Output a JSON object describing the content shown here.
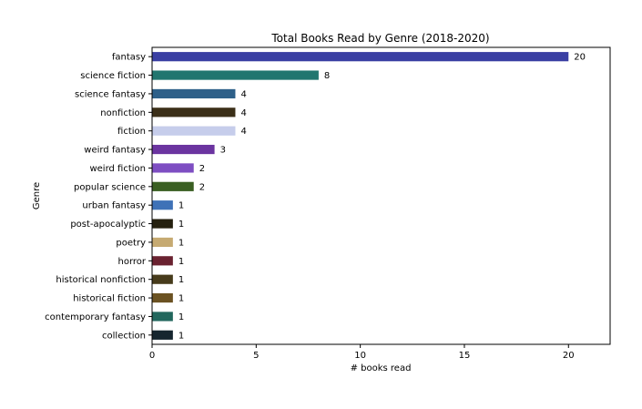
{
  "chart_data": {
    "type": "bar",
    "orientation": "horizontal",
    "title": "Total Books Read by Genre (2018-2020)",
    "xlabel": "# books read",
    "ylabel": "Genre",
    "xlim": [
      0,
      22
    ],
    "xticks": [
      0,
      5,
      10,
      15,
      20
    ],
    "grid": false,
    "categories": [
      "fantasy",
      "science fiction",
      "science fantasy",
      "nonfiction",
      "fiction",
      "weird fantasy",
      "weird fiction",
      "popular science",
      "urban fantasy",
      "post-apocalyptic",
      "poetry",
      "horror",
      "historical nonfiction",
      "historical fiction",
      "contemporary fantasy",
      "collection"
    ],
    "values": [
      20,
      8,
      4,
      4,
      4,
      3,
      2,
      2,
      1,
      1,
      1,
      1,
      1,
      1,
      1,
      1
    ],
    "colors": [
      "#3a3fa3",
      "#21766f",
      "#2e6089",
      "#3b2f18",
      "#c6cdeb",
      "#6b34a0",
      "#7e4ec2",
      "#3a5f22",
      "#3f72b7",
      "#25200f",
      "#c6aa72",
      "#6a2230",
      "#473b1b",
      "#6b5222",
      "#22675d",
      "#16262f"
    ]
  }
}
